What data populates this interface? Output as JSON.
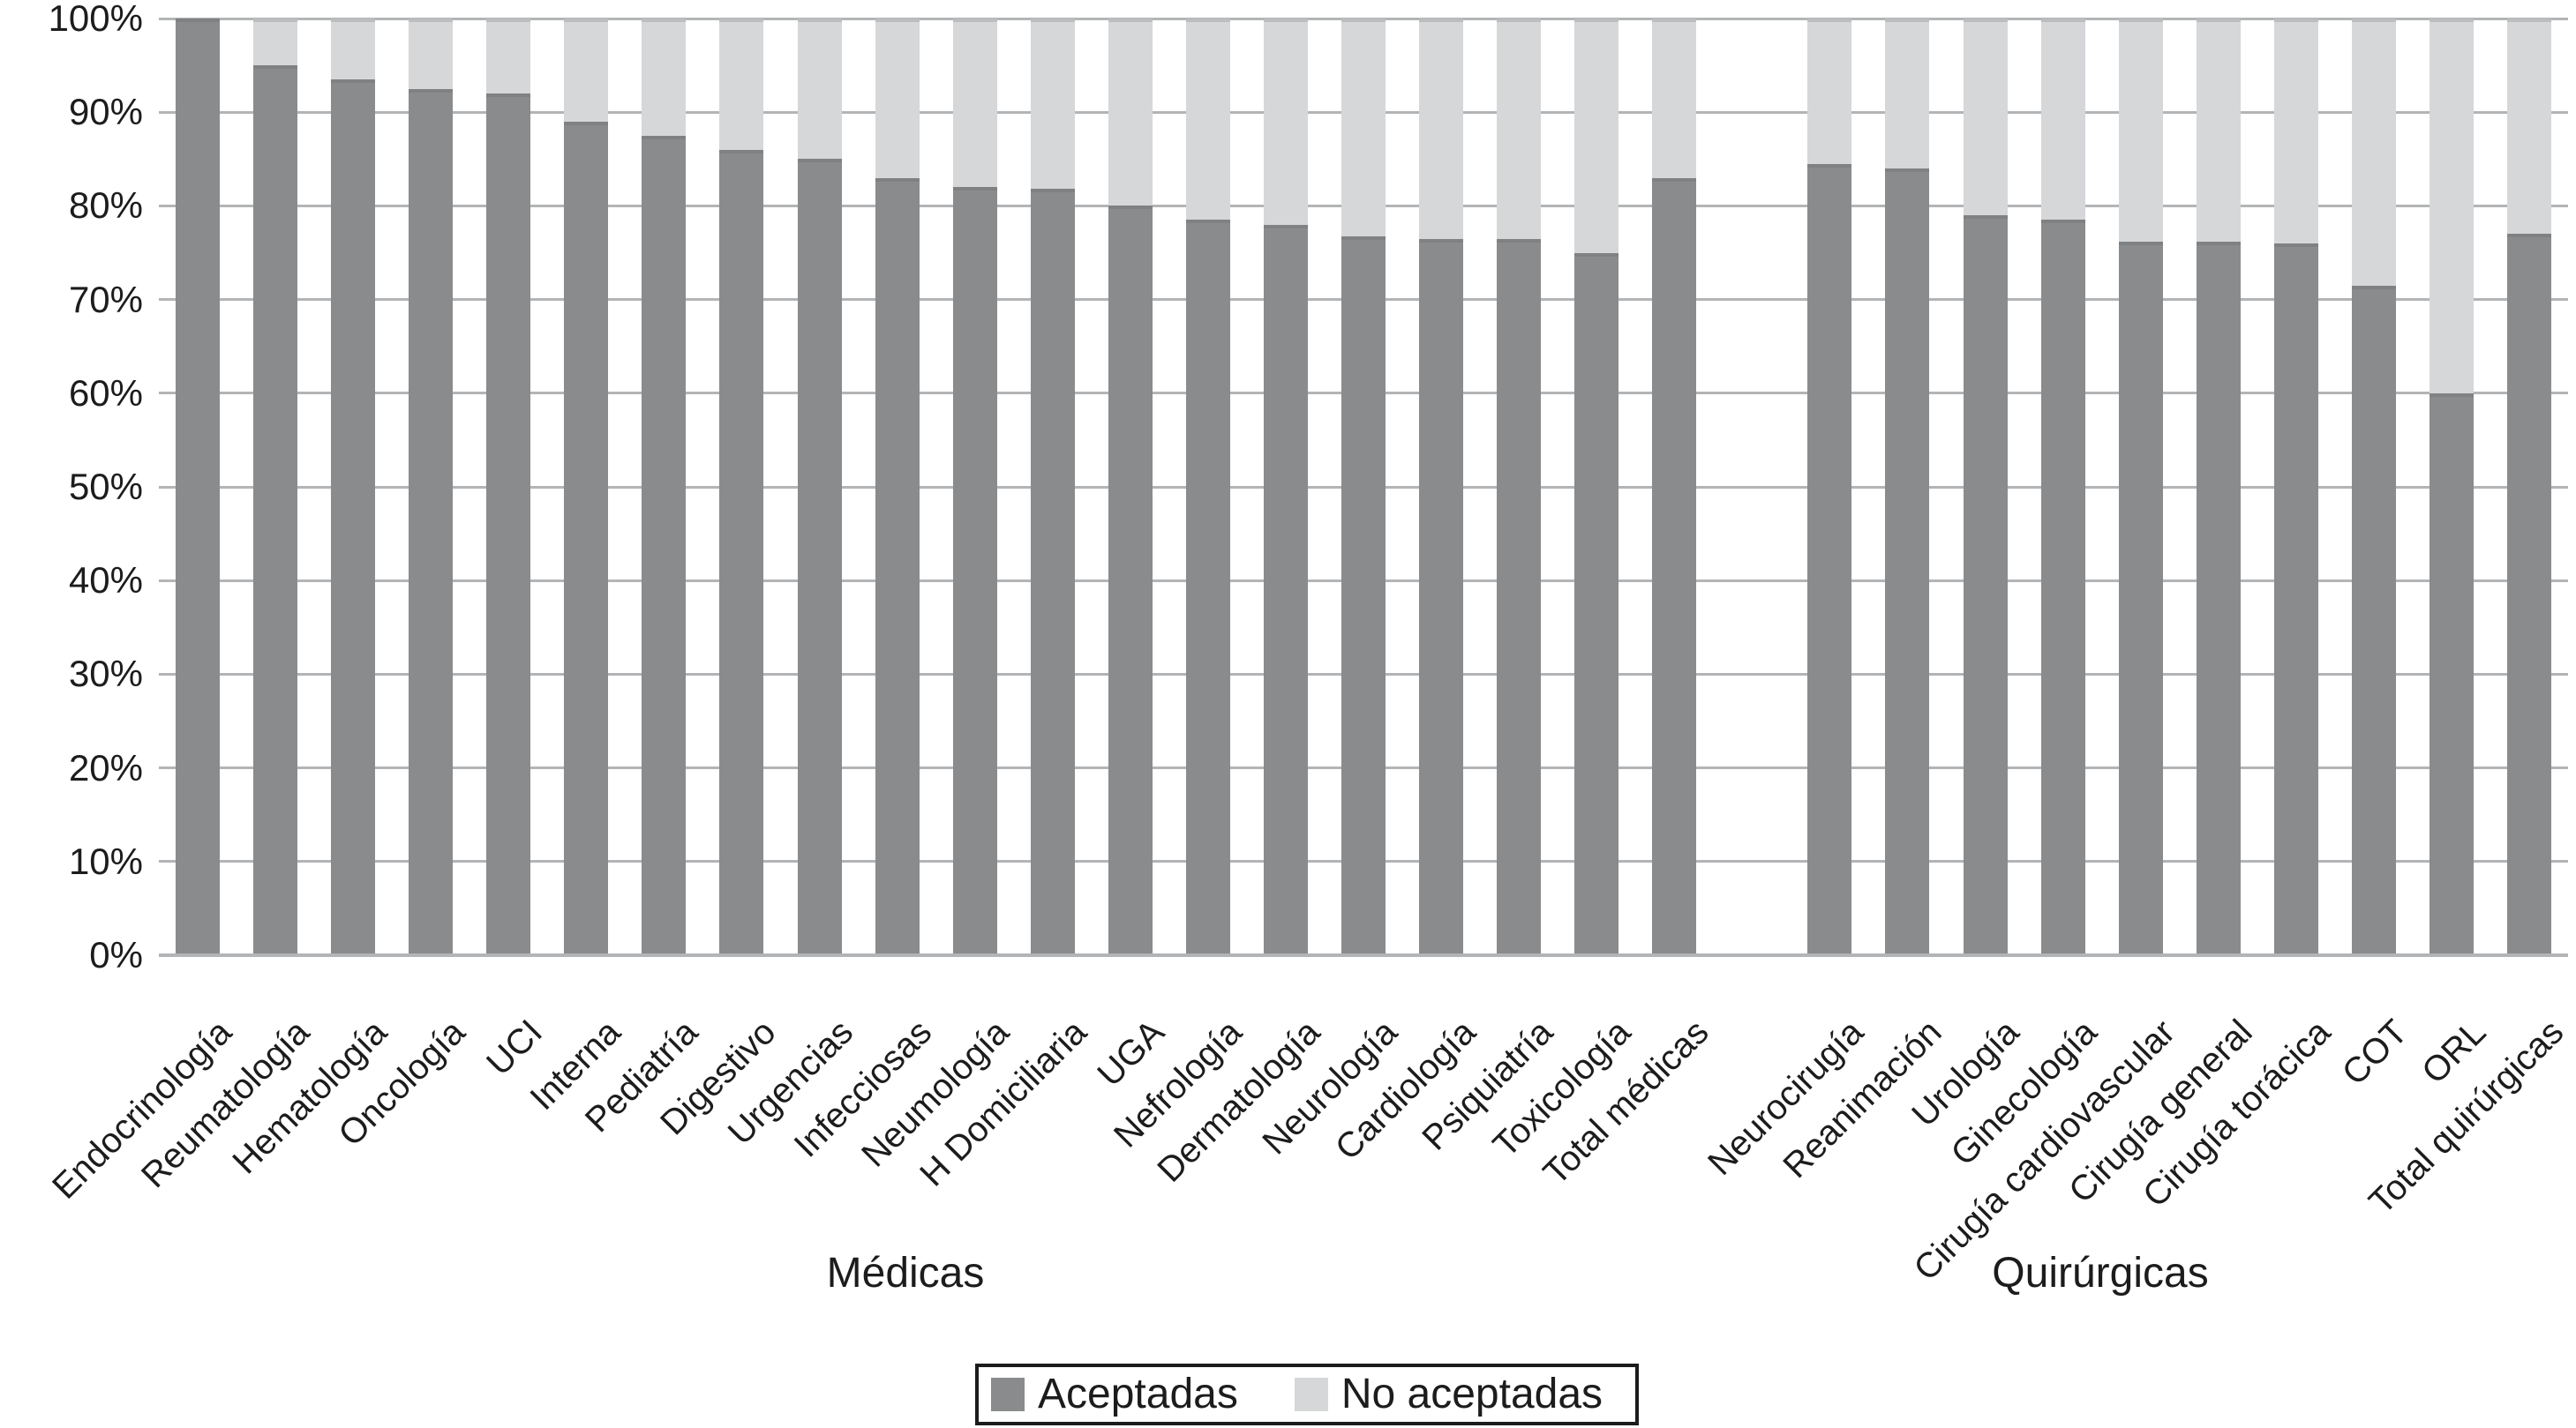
{
  "chart_data": {
    "type": "bar",
    "subtype": "stacked-100-percent",
    "title": "",
    "xlabel": "",
    "ylabel": "",
    "ylim": [
      0,
      100
    ],
    "y_ticks": [
      "0%",
      "10%",
      "20%",
      "30%",
      "40%",
      "50%",
      "60%",
      "70%",
      "80%",
      "90%",
      "100%"
    ],
    "grid": true,
    "legend_position": "bottom",
    "groups": [
      {
        "label": "Médicas",
        "categories": [
          "Endocrinología",
          "Reumatología",
          "Hematología",
          "Oncología",
          "UCI",
          "Interna",
          "Pediatría",
          "Digestivo",
          "Urgencias",
          "Infecciosas",
          "Neumología",
          "H Domiciliaria",
          "UGA",
          "Nefrología",
          "Dermatología",
          "Neurología",
          "Cardiología",
          "Psiquiatría",
          "Toxicología",
          "Total médicas"
        ]
      },
      {
        "label": "Quirúrgicas",
        "categories": [
          "Neurocirugía",
          "Reanimación",
          "Urología",
          "Ginecología",
          "Cirugía cardiovascular",
          "Cirugía general",
          "Cirugía torácica",
          "COT",
          "ORL",
          "Total quirúrgicas"
        ]
      }
    ],
    "series": [
      {
        "name": "Aceptadas",
        "color": "#8a8b8d",
        "values": [
          100,
          95,
          93.5,
          92.5,
          92,
          89,
          87.5,
          86,
          85,
          83,
          82,
          81.8,
          80,
          78.5,
          78,
          76.7,
          76.5,
          76.5,
          75,
          83,
          84.5,
          84,
          79,
          78.5,
          76.2,
          76.2,
          76,
          71.5,
          60,
          77
        ]
      },
      {
        "name": "No aceptadas",
        "color": "#d6d7d9",
        "values": [
          0,
          5,
          6.5,
          7.5,
          8,
          11,
          12.5,
          14,
          15,
          17,
          18,
          18.2,
          20,
          21.5,
          22,
          23.3,
          23.5,
          23.5,
          25,
          17,
          15.5,
          16,
          21,
          21.5,
          23.8,
          23.8,
          24,
          28.5,
          40,
          23
        ]
      }
    ],
    "colors": {
      "grid": "#b3b4b6",
      "axis": "#b3b4b6",
      "text": "#1c1c1c",
      "legend_border": "#1c1c1c",
      "background": "#ffffff"
    }
  }
}
